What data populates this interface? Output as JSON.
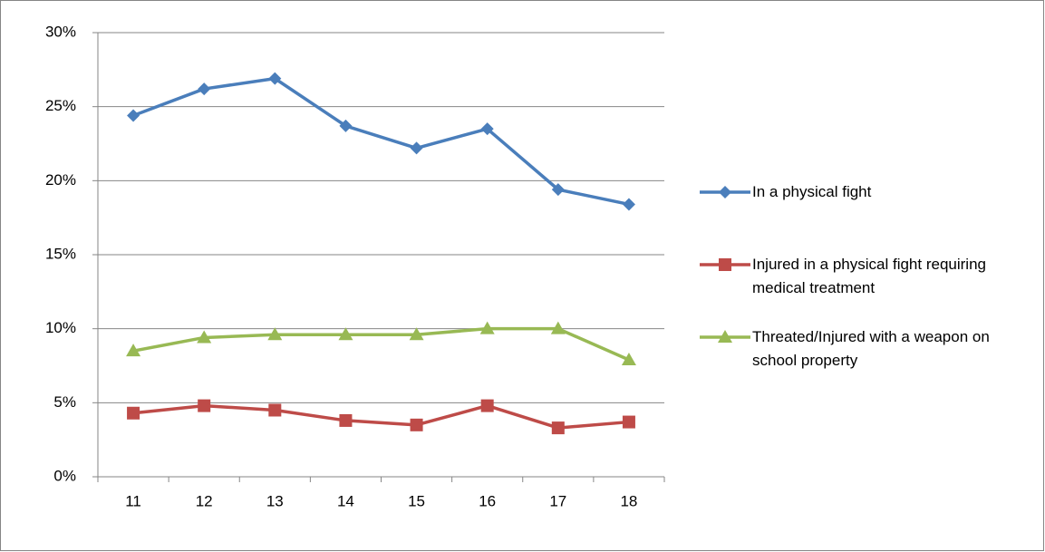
{
  "chart_data": {
    "type": "line",
    "categories": [
      "11",
      "12",
      "13",
      "14",
      "15",
      "16",
      "17",
      "18"
    ],
    "series": [
      {
        "name": "In a physical fight",
        "color": "#4a7ebb",
        "marker": "diamond",
        "values": [
          24.4,
          26.2,
          26.9,
          23.7,
          22.2,
          23.5,
          19.4,
          18.4
        ]
      },
      {
        "name": "Injured in a physical fight requiring medical treatment",
        "color": "#be4b48",
        "marker": "square",
        "values": [
          4.3,
          4.8,
          4.5,
          3.8,
          3.5,
          4.8,
          3.3,
          3.7
        ]
      },
      {
        "name": "Threated/Injured with a weapon on school property",
        "color": "#98b954",
        "marker": "triangle",
        "values": [
          8.5,
          9.4,
          9.6,
          9.6,
          9.6,
          10.0,
          10.0,
          7.9
        ]
      }
    ],
    "ylim": [
      0,
      30
    ],
    "yticks": [
      {
        "value": 0,
        "label": "0%"
      },
      {
        "value": 5,
        "label": "5%"
      },
      {
        "value": 10,
        "label": "10%"
      },
      {
        "value": 15,
        "label": "15%"
      },
      {
        "value": 20,
        "label": "20%"
      },
      {
        "value": 25,
        "label": "25%"
      },
      {
        "value": 30,
        "label": "30%"
      }
    ],
    "grid": true,
    "legend": "right"
  }
}
